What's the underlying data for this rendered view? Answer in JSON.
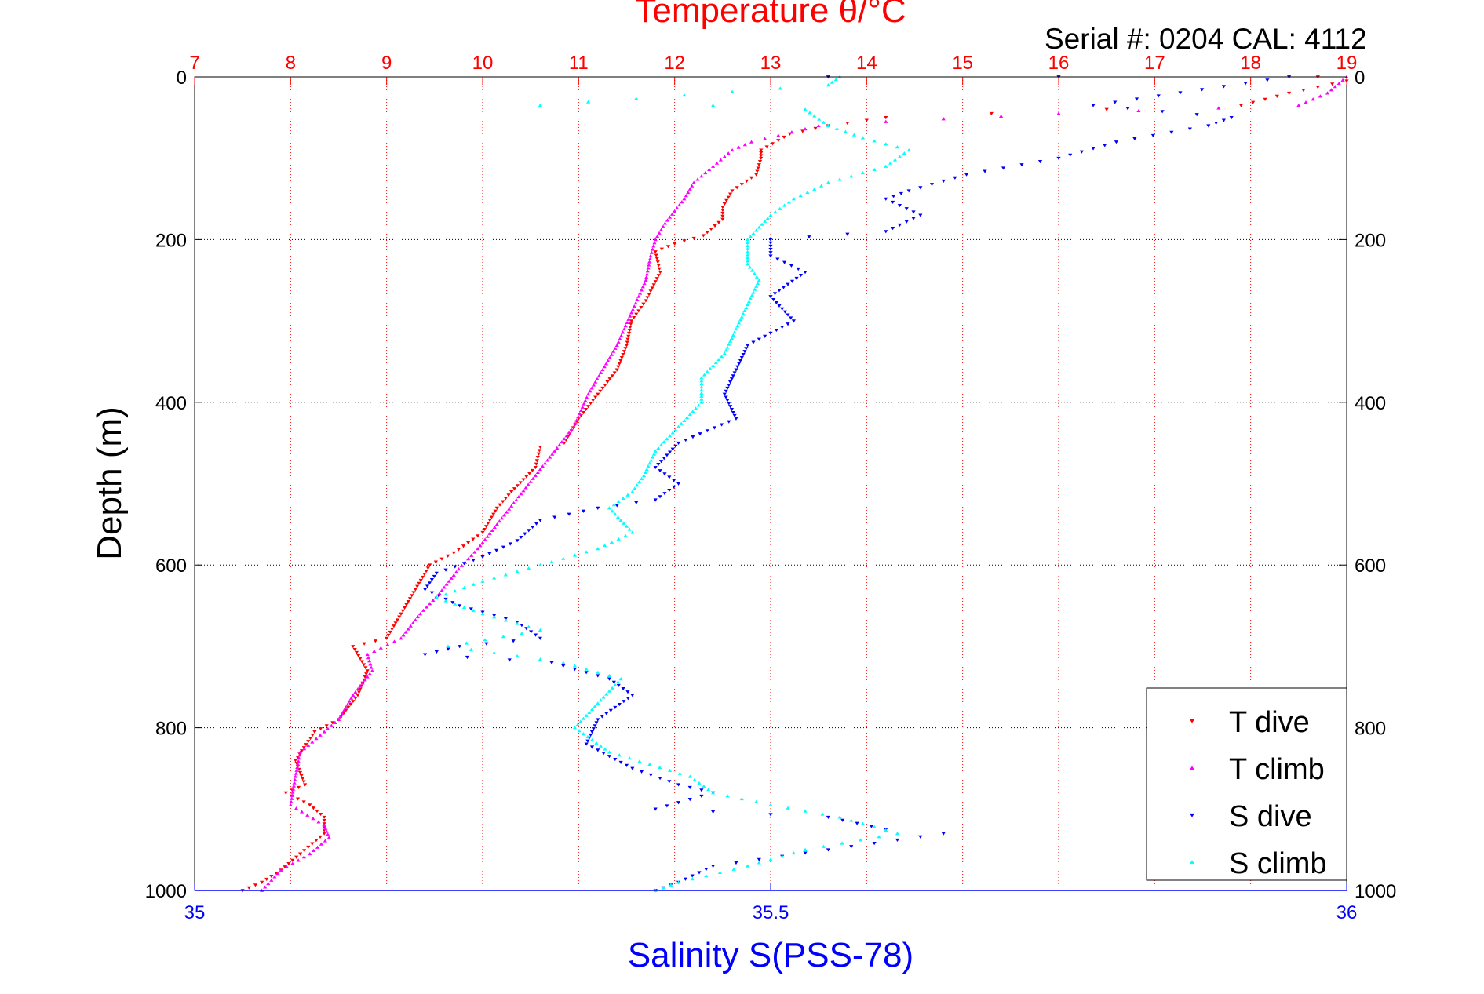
{
  "chart_data": {
    "type": "scatter",
    "title": "Temperature θ/°C",
    "annotation": "Serial #: 0204  CAL: 4112",
    "ylabel": "Depth (m)",
    "xlabel": "Salinity S(PSS-78)",
    "top_axis": {
      "label": "Temperature θ/°C",
      "range": [
        7,
        19
      ],
      "ticks": [
        "7",
        "8",
        "9",
        "10",
        "11",
        "12",
        "13",
        "14",
        "15",
        "16",
        "17",
        "18",
        "19"
      ],
      "color": "#ff0000"
    },
    "bottom_axis": {
      "label": "Salinity S(PSS-78)",
      "range": [
        35,
        36
      ],
      "ticks": [
        "35",
        "35.5",
        "36"
      ],
      "color": "#0000ff"
    },
    "y_axis": {
      "range": [
        0,
        1000
      ],
      "inverted": true,
      "ticks": [
        "0",
        "200",
        "400",
        "600",
        "800",
        "1000"
      ]
    },
    "grid": true,
    "legend_position": "bottom-right",
    "series": [
      {
        "name": "T dive",
        "axis": "temperature",
        "color": "#ff0000",
        "marker": "triangle-down",
        "points": [
          [
            18.7,
            0
          ],
          [
            19.0,
            5
          ],
          [
            18.4,
            20
          ],
          [
            17.9,
            35
          ],
          [
            16.5,
            40
          ],
          [
            15.3,
            45
          ],
          [
            14.2,
            50
          ],
          [
            13.6,
            60
          ],
          [
            13.2,
            70
          ],
          [
            12.9,
            90
          ],
          [
            12.9,
            100
          ],
          [
            12.85,
            120
          ],
          [
            12.6,
            140
          ],
          [
            12.5,
            160
          ],
          [
            12.5,
            175
          ],
          [
            12.3,
            195
          ],
          [
            12.0,
            205
          ],
          [
            11.8,
            215
          ],
          [
            11.85,
            240
          ],
          [
            11.7,
            275
          ],
          [
            11.55,
            300
          ],
          [
            11.5,
            330
          ],
          [
            11.4,
            360
          ],
          [
            11.2,
            390
          ],
          [
            11.0,
            420
          ],
          [
            10.85,
            450
          ],
          [
            10.6,
            455
          ],
          [
            10.55,
            480
          ],
          [
            10.3,
            510
          ],
          [
            10.15,
            530
          ],
          [
            10.0,
            560
          ],
          [
            9.7,
            585
          ],
          [
            9.45,
            600
          ],
          [
            9.3,
            630
          ],
          [
            9.15,
            660
          ],
          [
            9.0,
            690
          ],
          [
            8.65,
            700
          ],
          [
            8.8,
            730
          ],
          [
            8.7,
            760
          ],
          [
            8.5,
            790
          ],
          [
            8.25,
            805
          ],
          [
            8.05,
            840
          ],
          [
            8.15,
            870
          ],
          [
            7.95,
            880
          ],
          [
            8.2,
            895
          ],
          [
            8.35,
            910
          ],
          [
            8.35,
            930
          ],
          [
            8.1,
            955
          ],
          [
            7.9,
            975
          ],
          [
            7.7,
            990
          ],
          [
            7.5,
            1000
          ]
        ]
      },
      {
        "name": "T climb",
        "axis": "temperature",
        "color": "#ff00ff",
        "marker": "triangle-up",
        "points": [
          [
            19.0,
            0
          ],
          [
            18.8,
            20
          ],
          [
            18.5,
            35
          ],
          [
            16.0,
            45
          ],
          [
            14.2,
            55
          ],
          [
            13.5,
            60
          ],
          [
            12.8,
            80
          ],
          [
            12.6,
            90
          ],
          [
            12.4,
            110
          ],
          [
            12.2,
            130
          ],
          [
            12.1,
            150
          ],
          [
            11.9,
            180
          ],
          [
            11.8,
            200
          ],
          [
            11.75,
            220
          ],
          [
            11.7,
            250
          ],
          [
            11.55,
            290
          ],
          [
            11.4,
            330
          ],
          [
            11.25,
            360
          ],
          [
            11.1,
            390
          ],
          [
            10.95,
            430
          ],
          [
            10.75,
            460
          ],
          [
            10.55,
            490
          ],
          [
            10.35,
            520
          ],
          [
            10.15,
            550
          ],
          [
            9.95,
            580
          ],
          [
            9.75,
            605
          ],
          [
            9.55,
            635
          ],
          [
            9.35,
            660
          ],
          [
            9.15,
            690
          ],
          [
            8.8,
            710
          ],
          [
            8.85,
            730
          ],
          [
            8.65,
            760
          ],
          [
            8.5,
            790
          ],
          [
            8.35,
            805
          ],
          [
            8.1,
            830
          ],
          [
            8.05,
            860
          ],
          [
            8.0,
            895
          ],
          [
            8.35,
            920
          ],
          [
            8.4,
            935
          ],
          [
            8.2,
            955
          ],
          [
            7.9,
            975
          ],
          [
            7.7,
            1000
          ]
        ]
      },
      {
        "name": "S dive",
        "axis": "salinity",
        "color": "#0000ff",
        "marker": "triangle-down",
        "points": [
          [
            35.55,
            0
          ],
          [
            35.75,
            0
          ],
          [
            35.95,
            0
          ],
          [
            35.78,
            35
          ],
          [
            35.9,
            50
          ],
          [
            35.88,
            60
          ],
          [
            35.8,
            80
          ],
          [
            35.75,
            100
          ],
          [
            35.67,
            120
          ],
          [
            35.62,
            140
          ],
          [
            35.6,
            150
          ],
          [
            35.63,
            170
          ],
          [
            35.6,
            190
          ],
          [
            35.5,
            200
          ],
          [
            35.5,
            220
          ],
          [
            35.53,
            240
          ],
          [
            35.5,
            270
          ],
          [
            35.52,
            300
          ],
          [
            35.48,
            330
          ],
          [
            35.47,
            360
          ],
          [
            35.46,
            390
          ],
          [
            35.47,
            420
          ],
          [
            35.42,
            450
          ],
          [
            35.4,
            480
          ],
          [
            35.42,
            500
          ],
          [
            35.4,
            520
          ],
          [
            35.35,
            530
          ],
          [
            35.3,
            545
          ],
          [
            35.28,
            570
          ],
          [
            35.25,
            590
          ],
          [
            35.21,
            610
          ],
          [
            35.2,
            630
          ],
          [
            35.23,
            650
          ],
          [
            35.28,
            670
          ],
          [
            35.3,
            690
          ],
          [
            35.23,
            700
          ],
          [
            35.2,
            710
          ],
          [
            35.31,
            720
          ],
          [
            35.36,
            740
          ],
          [
            35.38,
            760
          ],
          [
            35.35,
            790
          ],
          [
            35.34,
            820
          ],
          [
            35.38,
            850
          ],
          [
            35.42,
            870
          ],
          [
            35.45,
            880
          ],
          [
            35.4,
            900
          ],
          [
            35.55,
            910
          ],
          [
            35.6,
            925
          ],
          [
            35.65,
            930
          ],
          [
            35.55,
            950
          ],
          [
            35.45,
            970
          ],
          [
            35.42,
            990
          ],
          [
            35.4,
            1000
          ]
        ]
      },
      {
        "name": "S climb",
        "axis": "salinity",
        "color": "#00ffff",
        "marker": "triangle-up",
        "points": [
          [
            35.56,
            0
          ],
          [
            35.55,
            10
          ],
          [
            35.3,
            35
          ],
          [
            35.45,
            35
          ],
          [
            35.53,
            40
          ],
          [
            35.55,
            60
          ],
          [
            35.58,
            75
          ],
          [
            35.62,
            90
          ],
          [
            35.6,
            110
          ],
          [
            35.55,
            130
          ],
          [
            35.52,
            150
          ],
          [
            35.5,
            170
          ],
          [
            35.48,
            200
          ],
          [
            35.48,
            230
          ],
          [
            35.49,
            250
          ],
          [
            35.48,
            280
          ],
          [
            35.47,
            310
          ],
          [
            35.46,
            340
          ],
          [
            35.44,
            370
          ],
          [
            35.44,
            400
          ],
          [
            35.42,
            430
          ],
          [
            35.4,
            460
          ],
          [
            35.39,
            490
          ],
          [
            35.38,
            510
          ],
          [
            35.36,
            530
          ],
          [
            35.38,
            560
          ],
          [
            35.35,
            580
          ],
          [
            35.3,
            600
          ],
          [
            35.25,
            620
          ],
          [
            35.21,
            640
          ],
          [
            35.25,
            660
          ],
          [
            35.3,
            680
          ],
          [
            35.22,
            700
          ],
          [
            35.32,
            720
          ],
          [
            35.37,
            740
          ],
          [
            35.35,
            770
          ],
          [
            35.33,
            800
          ],
          [
            35.36,
            830
          ],
          [
            35.43,
            860
          ],
          [
            35.45,
            880
          ],
          [
            35.5,
            895
          ],
          [
            35.56,
            910
          ],
          [
            35.61,
            930
          ],
          [
            35.53,
            950
          ],
          [
            35.48,
            970
          ],
          [
            35.42,
            990
          ],
          [
            35.4,
            1000
          ]
        ]
      }
    ]
  }
}
